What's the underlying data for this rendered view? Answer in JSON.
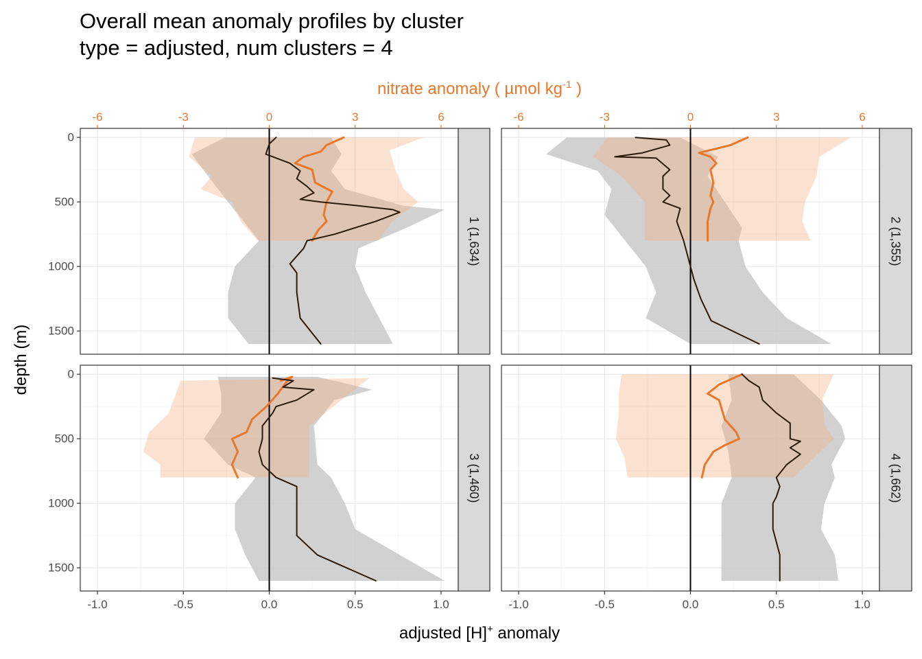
{
  "title": {
    "line1": "Overall mean anomaly profiles by cluster",
    "line2": "type = adjusted, num clusters = 4"
  },
  "colors": {
    "nitrate": "#e8782b",
    "nitrate_ribbon": "#fbe3d2",
    "h_line": "#2b1a0c",
    "h_ribbon": "#c9c9c9",
    "strip_bg": "#d9d9d9",
    "grid_major": "#ebebeb",
    "grid_minor": "#f5f5f5",
    "zero_line": "#000000"
  },
  "chart_data": {
    "type": "line",
    "orientation": "profile (value on x, depth on y, depth reversed)",
    "xlabel": "adjusted [H]+ anomaly",
    "xlabel_parts": {
      "main": "adjusted [H]",
      "sup": "+",
      "tail": " anomaly"
    },
    "ylabel": "depth (m)",
    "secondary_xlabel": "nitrate anomaly ( µmol kg-1 )",
    "secondary_xlabel_parts": {
      "main": "nitrate anomaly ( µmol kg",
      "sup": "-1",
      "tail": " )"
    },
    "xlim": [
      -1.1,
      1.1
    ],
    "ylim": [
      1680,
      -70
    ],
    "x_ticks": [
      -1.0,
      -0.5,
      0.0,
      0.5,
      1.0
    ],
    "x_tick_labels": [
      "-1.0",
      "-0.5",
      "0.0",
      "0.5",
      "1.0"
    ],
    "y_ticks": [
      0,
      500,
      1000,
      1500
    ],
    "y_tick_labels": [
      "0",
      "500",
      "1000",
      "1500"
    ],
    "secondary_x_ticks": [
      -6,
      -3,
      0,
      3,
      6
    ],
    "secondary_x_tick_labels": [
      "-6",
      "-3",
      "0",
      "3",
      "6"
    ],
    "secondary_scale": "nitrate = 6 x [H]+",
    "grid": true,
    "legend": "none",
    "facets": [
      {
        "strip": "1 (1,634)",
        "h_mean": [
          [
            0.04,
            0
          ],
          [
            0.0,
            50
          ],
          [
            -0.02,
            130
          ],
          [
            0.12,
            200
          ],
          [
            0.18,
            260
          ],
          [
            0.16,
            320
          ],
          [
            0.22,
            380
          ],
          [
            0.26,
            430
          ],
          [
            0.18,
            480
          ],
          [
            0.3,
            500
          ],
          [
            0.52,
            530
          ],
          [
            0.72,
            560
          ],
          [
            0.76,
            580
          ],
          [
            0.62,
            650
          ],
          [
            0.38,
            750
          ],
          [
            0.22,
            800
          ],
          [
            0.2,
            860
          ],
          [
            0.12,
            980
          ],
          [
            0.16,
            1050
          ],
          [
            0.16,
            1200
          ],
          [
            0.18,
            1400
          ],
          [
            0.3,
            1600
          ]
        ],
        "h_low": [
          [
            -0.26,
            0
          ],
          [
            -0.45,
            130
          ],
          [
            -0.38,
            260
          ],
          [
            -0.24,
            500
          ],
          [
            -0.06,
            800
          ],
          [
            -0.2,
            1000
          ],
          [
            -0.24,
            1200
          ],
          [
            -0.24,
            1400
          ],
          [
            -0.12,
            1600
          ]
        ],
        "h_high": [
          [
            0.36,
            0
          ],
          [
            0.42,
            130
          ],
          [
            0.36,
            260
          ],
          [
            0.44,
            400
          ],
          [
            0.78,
            530
          ],
          [
            1.02,
            560
          ],
          [
            0.8,
            700
          ],
          [
            0.52,
            860
          ],
          [
            0.5,
            1000
          ],
          [
            0.56,
            1200
          ],
          [
            0.64,
            1400
          ],
          [
            0.72,
            1600
          ]
        ],
        "nitrate_mean": [
          [
            2.6,
            0
          ],
          [
            2.0,
            60
          ],
          [
            1.8,
            110
          ],
          [
            1.2,
            150
          ],
          [
            0.9,
            200
          ],
          [
            1.5,
            250
          ],
          [
            1.6,
            350
          ],
          [
            2.2,
            420
          ],
          [
            2.0,
            500
          ],
          [
            1.9,
            600
          ],
          [
            2.0,
            650
          ],
          [
            1.7,
            720
          ],
          [
            1.5,
            800
          ]
        ],
        "nitrate_low": [
          [
            -2.6,
            0
          ],
          [
            -2.8,
            150
          ],
          [
            -2.0,
            300
          ],
          [
            -2.4,
            400
          ],
          [
            -1.3,
            500
          ],
          [
            -1.0,
            650
          ],
          [
            -0.4,
            800
          ]
        ],
        "nitrate_high": [
          [
            5.4,
            0
          ],
          [
            4.2,
            100
          ],
          [
            4.4,
            250
          ],
          [
            4.7,
            400
          ],
          [
            5.2,
            500
          ],
          [
            4.3,
            650
          ],
          [
            3.8,
            800
          ]
        ]
      },
      {
        "strip": "2 (1,355)",
        "h_mean": [
          [
            -0.32,
            0
          ],
          [
            -0.14,
            20
          ],
          [
            -0.12,
            60
          ],
          [
            -0.28,
            120
          ],
          [
            -0.44,
            150
          ],
          [
            -0.2,
            160
          ],
          [
            -0.12,
            250
          ],
          [
            -0.16,
            300
          ],
          [
            -0.16,
            400
          ],
          [
            -0.12,
            450
          ],
          [
            -0.16,
            500
          ],
          [
            -0.06,
            550
          ],
          [
            -0.08,
            650
          ],
          [
            -0.04,
            800
          ],
          [
            -0.02,
            900
          ],
          [
            0.0,
            1000
          ],
          [
            0.02,
            1100
          ],
          [
            0.06,
            1250
          ],
          [
            0.12,
            1420
          ],
          [
            0.4,
            1600
          ]
        ],
        "h_low": [
          [
            -0.72,
            0
          ],
          [
            -0.84,
            130
          ],
          [
            -0.54,
            260
          ],
          [
            -0.46,
            400
          ],
          [
            -0.5,
            600
          ],
          [
            -0.38,
            800
          ],
          [
            -0.26,
            1000
          ],
          [
            -0.2,
            1200
          ],
          [
            -0.26,
            1400
          ],
          [
            0.0,
            1600
          ]
        ],
        "h_high": [
          [
            -0.06,
            0
          ],
          [
            0.16,
            150
          ],
          [
            0.1,
            300
          ],
          [
            0.2,
            500
          ],
          [
            0.3,
            700
          ],
          [
            0.28,
            800
          ],
          [
            0.32,
            1000
          ],
          [
            0.42,
            1200
          ],
          [
            0.56,
            1400
          ],
          [
            0.82,
            1600
          ]
        ],
        "nitrate_mean": [
          [
            2.0,
            0
          ],
          [
            1.4,
            60
          ],
          [
            0.3,
            120
          ],
          [
            0.7,
            150
          ],
          [
            0.9,
            200
          ],
          [
            0.7,
            250
          ],
          [
            0.8,
            350
          ],
          [
            0.7,
            450
          ],
          [
            0.8,
            500
          ],
          [
            0.7,
            550
          ],
          [
            0.6,
            650
          ],
          [
            0.6,
            800
          ]
        ],
        "nitrate_low": [
          [
            -2.9,
            0
          ],
          [
            -3.4,
            150
          ],
          [
            -2.4,
            300
          ],
          [
            -1.6,
            500
          ],
          [
            -1.6,
            650
          ],
          [
            -1.6,
            800
          ]
        ],
        "nitrate_high": [
          [
            5.6,
            0
          ],
          [
            4.5,
            150
          ],
          [
            4.4,
            300
          ],
          [
            4.0,
            500
          ],
          [
            3.9,
            650
          ],
          [
            4.2,
            800
          ]
        ]
      },
      {
        "strip": "3 (1,460)",
        "h_mean": [
          [
            0.02,
            30
          ],
          [
            0.14,
            50
          ],
          [
            0.08,
            100
          ],
          [
            0.26,
            120
          ],
          [
            0.16,
            200
          ],
          [
            0.04,
            250
          ],
          [
            0.02,
            300
          ],
          [
            -0.04,
            400
          ],
          [
            -0.04,
            500
          ],
          [
            -0.06,
            600
          ],
          [
            -0.04,
            700
          ],
          [
            0.04,
            800
          ],
          [
            0.16,
            870
          ],
          [
            0.16,
            1000
          ],
          [
            0.16,
            1250
          ],
          [
            0.28,
            1400
          ],
          [
            0.62,
            1600
          ]
        ],
        "h_low": [
          [
            -0.3,
            20
          ],
          [
            -0.28,
            150
          ],
          [
            -0.28,
            300
          ],
          [
            -0.38,
            500
          ],
          [
            -0.24,
            700
          ],
          [
            -0.08,
            800
          ],
          [
            -0.2,
            1000
          ],
          [
            -0.2,
            1200
          ],
          [
            -0.14,
            1400
          ],
          [
            -0.06,
            1600
          ]
        ],
        "h_high": [
          [
            0.28,
            20
          ],
          [
            0.6,
            120
          ],
          [
            0.38,
            200
          ],
          [
            0.26,
            400
          ],
          [
            0.28,
            700
          ],
          [
            0.36,
            800
          ],
          [
            0.44,
            1000
          ],
          [
            0.5,
            1200
          ],
          [
            0.76,
            1400
          ],
          [
            1.02,
            1600
          ]
        ],
        "nitrate_mean": [
          [
            0.4,
            50
          ],
          [
            0.8,
            20
          ],
          [
            0.6,
            60
          ],
          [
            0.3,
            150
          ],
          [
            -0.1,
            250
          ],
          [
            -0.6,
            350
          ],
          [
            -0.8,
            450
          ],
          [
            -1.3,
            500
          ],
          [
            -1.1,
            600
          ],
          [
            -1.3,
            700
          ],
          [
            -1.1,
            800
          ]
        ],
        "nitrate_low": [
          [
            -3.1,
            50
          ],
          [
            -3.5,
            300
          ],
          [
            -4.2,
            450
          ],
          [
            -4.4,
            600
          ],
          [
            -3.8,
            700
          ],
          [
            -3.8,
            800
          ]
        ],
        "nitrate_high": [
          [
            3.5,
            30
          ],
          [
            2.8,
            150
          ],
          [
            1.4,
            400
          ],
          [
            1.4,
            600
          ],
          [
            1.4,
            800
          ]
        ]
      },
      {
        "strip": "4 (1,662)",
        "h_mean": [
          [
            0.3,
            0
          ],
          [
            0.34,
            50
          ],
          [
            0.4,
            100
          ],
          [
            0.42,
            200
          ],
          [
            0.5,
            300
          ],
          [
            0.58,
            380
          ],
          [
            0.58,
            500
          ],
          [
            0.64,
            520
          ],
          [
            0.58,
            570
          ],
          [
            0.64,
            620
          ],
          [
            0.56,
            700
          ],
          [
            0.5,
            800
          ],
          [
            0.52,
            870
          ],
          [
            0.5,
            950
          ],
          [
            0.48,
            1000
          ],
          [
            0.48,
            1200
          ],
          [
            0.52,
            1400
          ],
          [
            0.52,
            1600
          ]
        ],
        "h_low": [
          [
            0.22,
            0
          ],
          [
            0.24,
            200
          ],
          [
            0.18,
            400
          ],
          [
            0.22,
            600
          ],
          [
            0.24,
            800
          ],
          [
            0.18,
            1000
          ],
          [
            0.18,
            1200
          ],
          [
            0.18,
            1400
          ],
          [
            0.18,
            1600
          ]
        ],
        "h_high": [
          [
            0.6,
            0
          ],
          [
            0.76,
            200
          ],
          [
            0.88,
            400
          ],
          [
            0.9,
            500
          ],
          [
            0.82,
            700
          ],
          [
            0.84,
            800
          ],
          [
            0.78,
            1000
          ],
          [
            0.76,
            1200
          ],
          [
            0.84,
            1400
          ],
          [
            0.86,
            1600
          ]
        ],
        "nitrate_mean": [
          [
            1.8,
            0
          ],
          [
            1.0,
            80
          ],
          [
            0.6,
            150
          ],
          [
            1.0,
            200
          ],
          [
            1.2,
            350
          ],
          [
            1.6,
            450
          ],
          [
            1.7,
            500
          ],
          [
            1.2,
            550
          ],
          [
            0.8,
            600
          ],
          [
            0.5,
            700
          ],
          [
            0.4,
            800
          ]
        ],
        "nitrate_low": [
          [
            -2.4,
            0
          ],
          [
            -2.5,
            150
          ],
          [
            -2.5,
            300
          ],
          [
            -2.6,
            500
          ],
          [
            -2.3,
            650
          ],
          [
            -2.2,
            800
          ]
        ],
        "nitrate_high": [
          [
            5.0,
            0
          ],
          [
            4.6,
            200
          ],
          [
            4.7,
            400
          ],
          [
            5.0,
            500
          ],
          [
            4.3,
            650
          ],
          [
            3.6,
            800
          ]
        ]
      }
    ]
  }
}
